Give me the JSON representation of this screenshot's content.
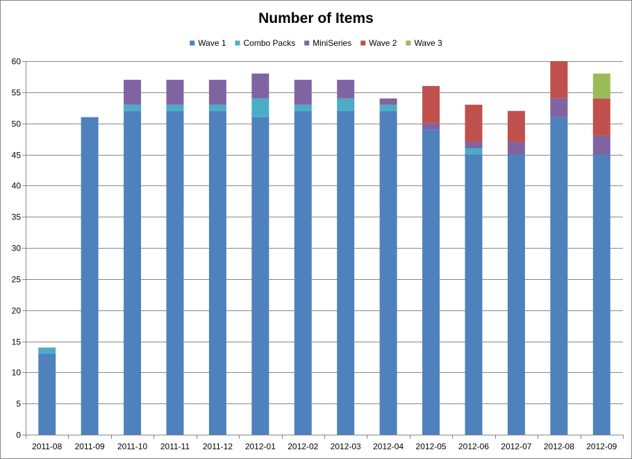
{
  "chart_data": {
    "type": "bar",
    "stacked": true,
    "title": "Number of Items",
    "xlabel": "",
    "ylabel": "",
    "ylim": [
      0,
      60
    ],
    "yticks": [
      0,
      5,
      10,
      15,
      20,
      25,
      30,
      35,
      40,
      45,
      50,
      55,
      60
    ],
    "grid": "horizontal",
    "legend_position": "top",
    "categories": [
      "2011-08",
      "2011-09",
      "2011-10",
      "2011-11",
      "2011-12",
      "2012-01",
      "2012-02",
      "2012-03",
      "2012-04",
      "2012-05",
      "2012-06",
      "2012-07",
      "2012-08",
      "2012-09"
    ],
    "series": [
      {
        "name": "Wave 1",
        "color": "#4F81BD",
        "values": [
          13,
          51,
          52,
          52,
          52,
          51,
          52,
          52,
          52,
          49,
          45,
          45,
          51,
          45
        ]
      },
      {
        "name": "Combo Packs",
        "color": "#4BACC6",
        "values": [
          1,
          0,
          1,
          1,
          1,
          3,
          1,
          2,
          1,
          0,
          1,
          0,
          0,
          0
        ]
      },
      {
        "name": "MiniSeries",
        "color": "#8064A2",
        "values": [
          0,
          0,
          4,
          4,
          4,
          4,
          4,
          3,
          1,
          1,
          1,
          2,
          3,
          3
        ]
      },
      {
        "name": "Wave 2",
        "color": "#C0504D",
        "values": [
          0,
          0,
          0,
          0,
          0,
          0,
          0,
          0,
          0,
          6,
          6,
          5,
          6,
          6
        ]
      },
      {
        "name": "Wave 3",
        "color": "#9BBB59",
        "values": [
          0,
          0,
          0,
          0,
          0,
          0,
          0,
          0,
          0,
          0,
          0,
          0,
          0,
          4
        ]
      }
    ]
  }
}
